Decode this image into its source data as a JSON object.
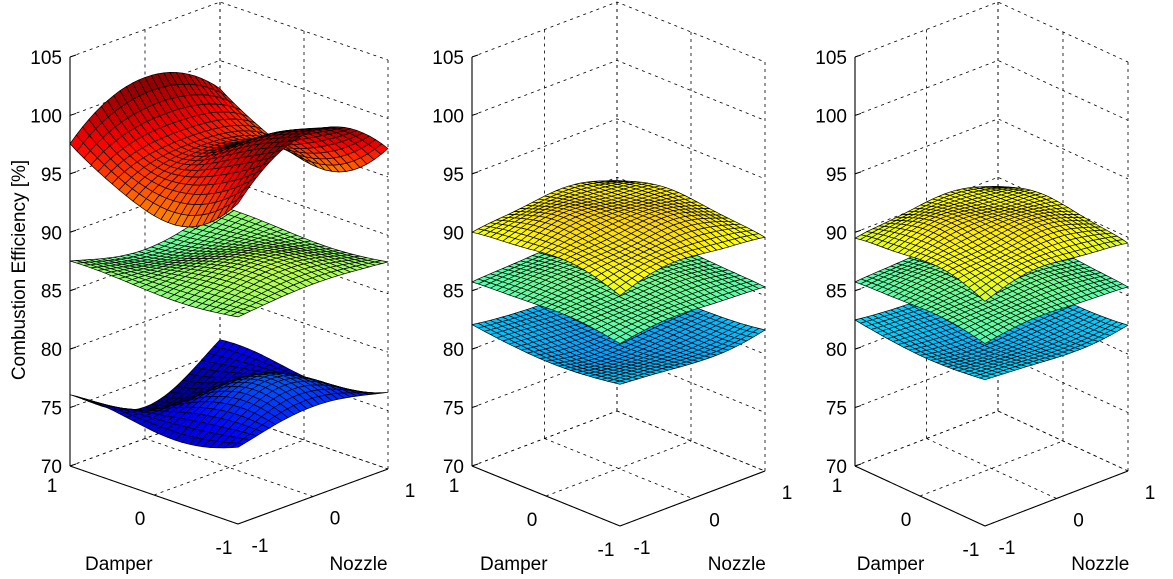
{
  "chart_data": {
    "type": "surface",
    "ylabel": "Combustion Efficiency [%]",
    "zlim": [
      70,
      105
    ],
    "zticks": [
      "70",
      "75",
      "80",
      "85",
      "90",
      "95",
      "100",
      "105"
    ],
    "xlabel": "Damper",
    "ylabel2": "Nozzle",
    "xticks": [
      "1",
      "0",
      "-1"
    ],
    "yticks": [
      "-1",
      "0",
      "1"
    ],
    "grid": true,
    "colormap": "jet",
    "panels": [
      {
        "surfaces": [
          {
            "center": 97.5,
            "amplitude": 4.0,
            "shape": "saddle",
            "color": "red-orange"
          },
          {
            "center": 87.5,
            "amplitude": 1.2,
            "shape": "wave",
            "color": "green"
          },
          {
            "center": 76.0,
            "amplitude": 3.0,
            "shape": "wave",
            "color": "blue"
          }
        ]
      },
      {
        "surfaces": [
          {
            "center": 90.5,
            "amplitude": 1.6,
            "shape": "dome",
            "color": "red"
          },
          {
            "center": 86.0,
            "amplitude": 0.8,
            "shape": "dome",
            "color": "yellow"
          },
          {
            "center": 81.5,
            "amplitude": 1.2,
            "shape": "dip",
            "color": "light-blue"
          }
        ]
      },
      {
        "surfaces": [
          {
            "center": 90.0,
            "amplitude": 1.6,
            "shape": "dome",
            "color": "red"
          },
          {
            "center": 86.0,
            "amplitude": 0.8,
            "shape": "dome",
            "color": "yellow"
          },
          {
            "center": 82.0,
            "amplitude": 1.0,
            "shape": "dip",
            "color": "light-blue"
          }
        ]
      }
    ]
  }
}
